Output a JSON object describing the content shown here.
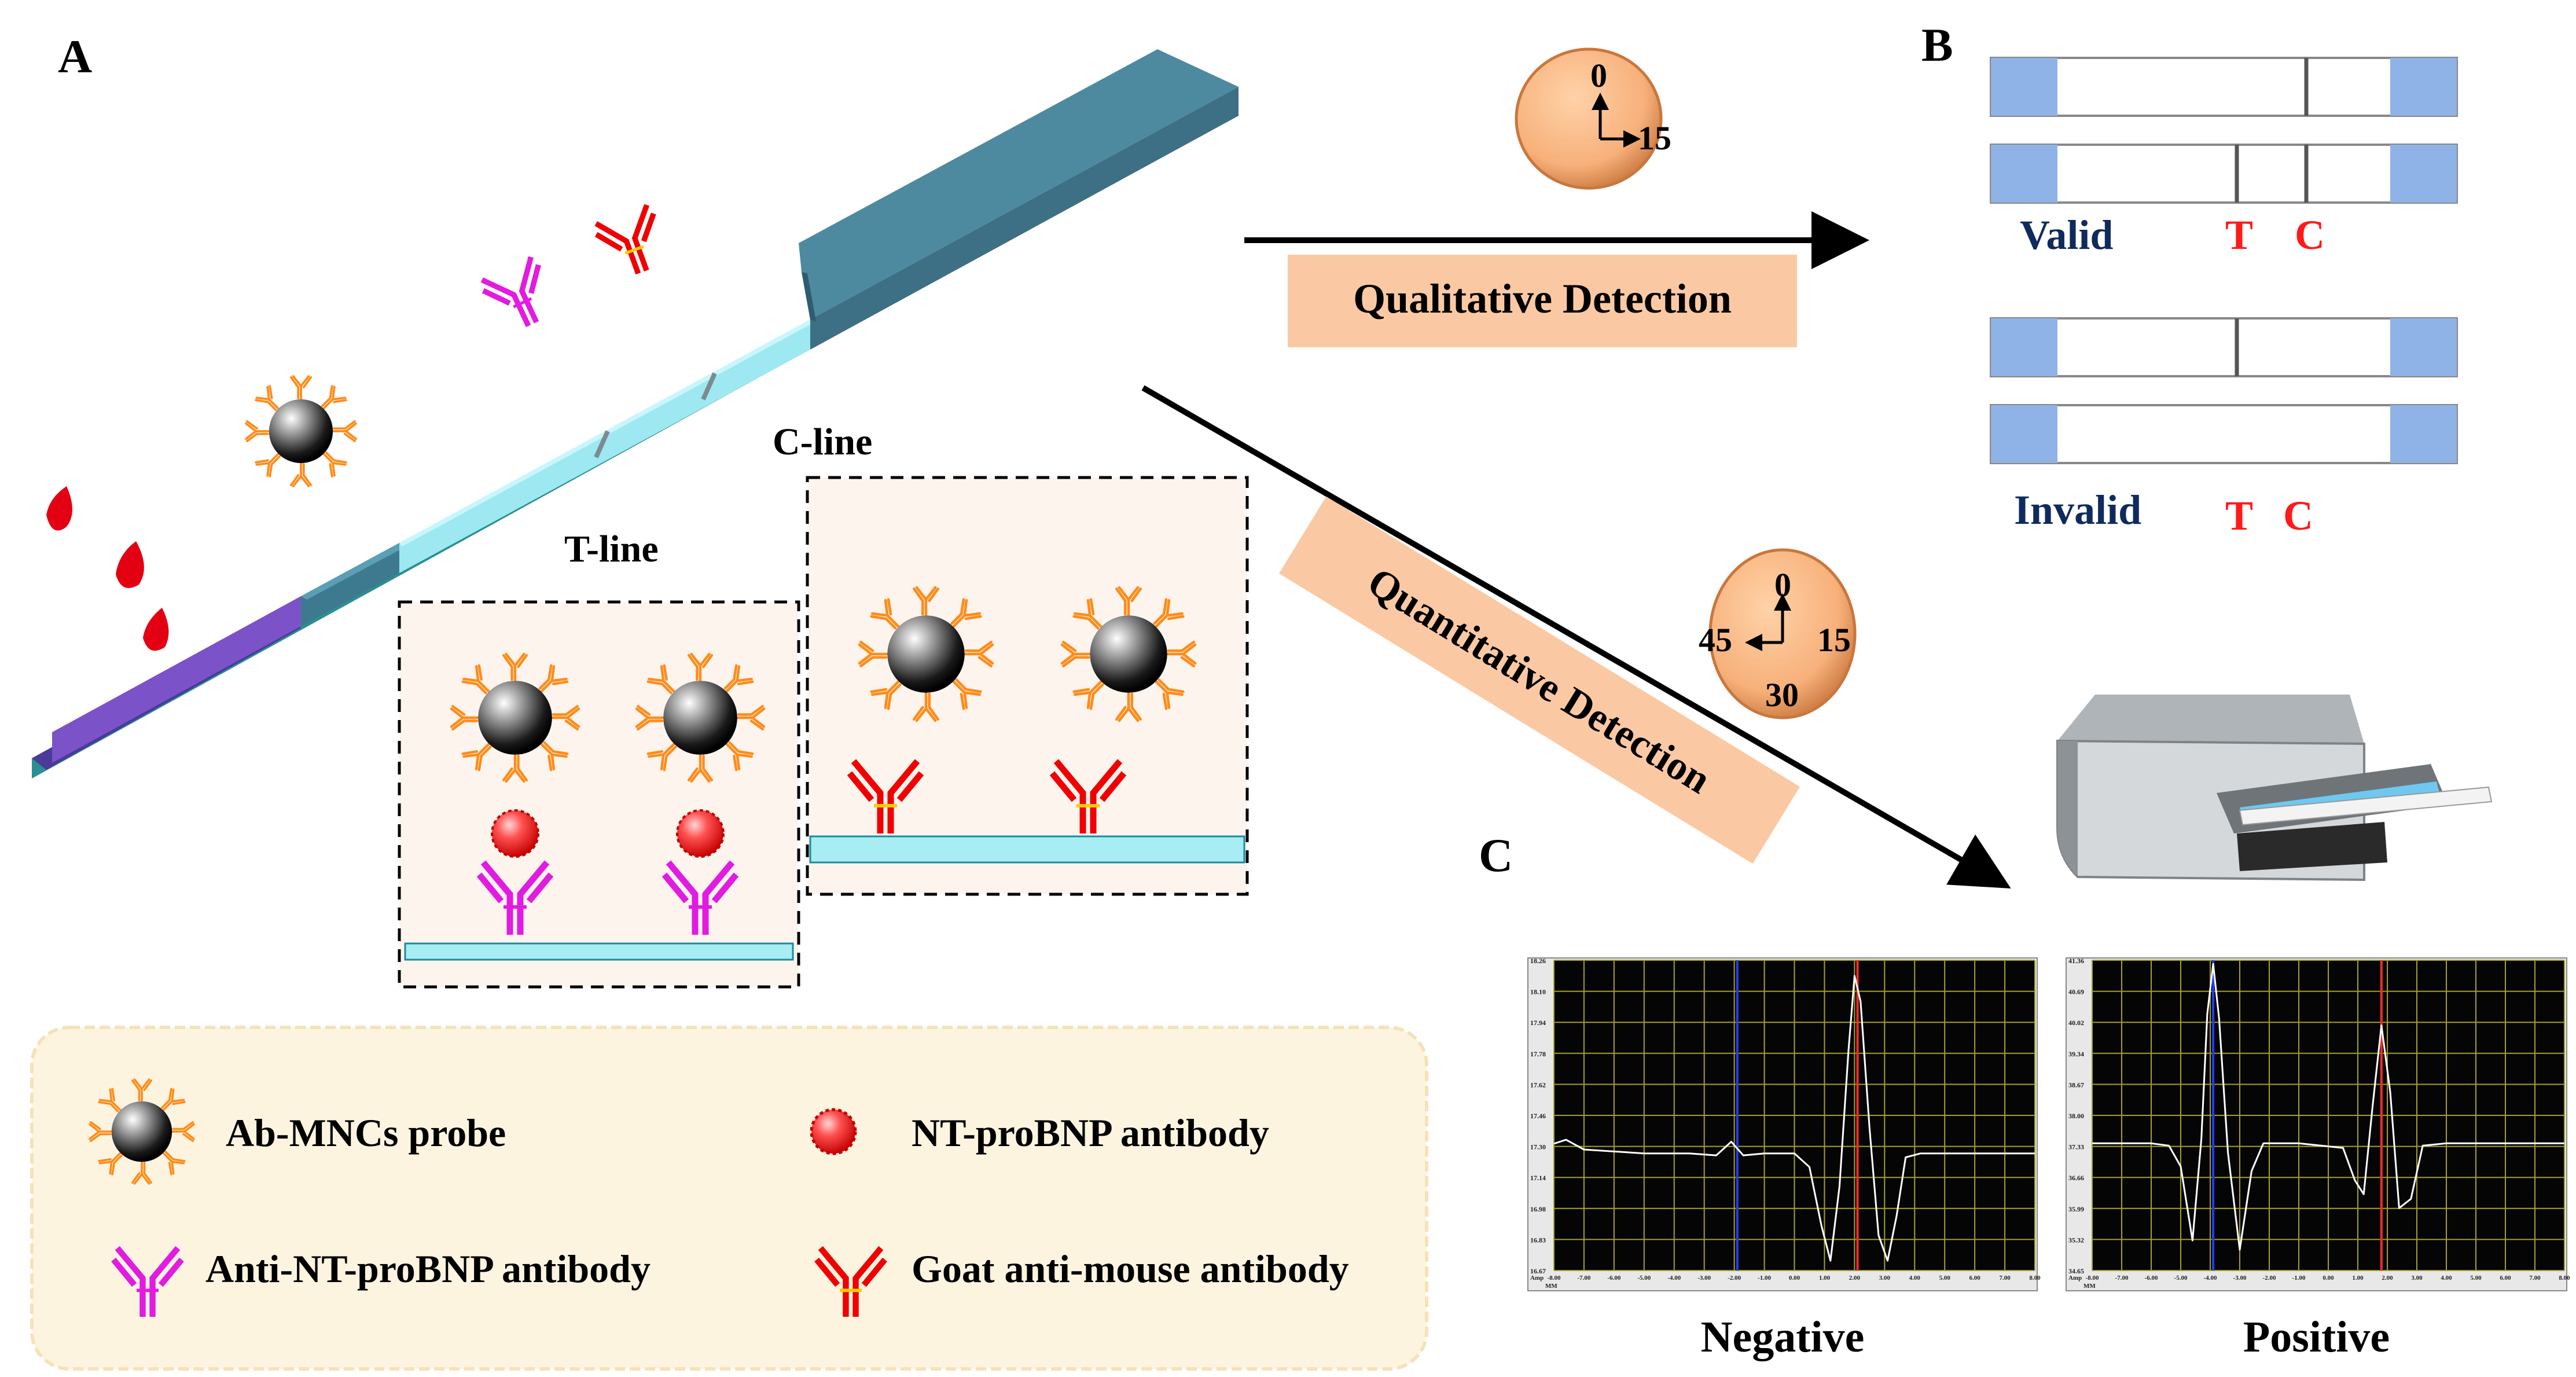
{
  "panels": {
    "a": "A",
    "b": "B",
    "c": "C"
  },
  "strip": {
    "t_line_label": "T-line",
    "c_line_label": "C-line"
  },
  "qualitative": {
    "label": "Qualitative Detection",
    "timer": {
      "t0": "0",
      "t15": "15"
    }
  },
  "quantitative": {
    "label": "Quantitative Detection",
    "timer": {
      "t0": "0",
      "t15": "15",
      "t30": "30",
      "t45": "45"
    }
  },
  "results": {
    "valid": {
      "label": "Valid",
      "t": "T",
      "c": "C"
    },
    "invalid": {
      "label": "Invalid",
      "t": "T",
      "c": "C"
    }
  },
  "legend": {
    "probe": "Ab-MNCs probe",
    "nt_antibody": "NT-proBNP antibody",
    "anti_nt": "Anti-NT-proBNP antibody",
    "goat": "Goat anti-mouse antibody"
  },
  "chart_data": [
    {
      "type": "line",
      "title": "Negative",
      "xlabel": "MM",
      "ylabel": "Amp",
      "xlim": [
        -8,
        8
      ],
      "ylim": [
        16.67,
        18.26
      ],
      "yticks": [
        "18.26",
        "18.10",
        "17.94",
        "17.78",
        "17.62",
        "17.46",
        "17.30",
        "17.14",
        "16.98",
        "16.83",
        "16.67"
      ],
      "xticks": [
        "-8.00",
        "-7.00",
        "-6.00",
        "-5.00",
        "-4.00",
        "-3.00",
        "-2.00",
        "-1.00",
        "0.00",
        "1.00",
        "2.00",
        "3.00",
        "4.00",
        "5.00",
        "6.00",
        "7.00",
        "8.00"
      ],
      "markers": [
        {
          "name": "T",
          "x": -1.9,
          "color": "#1f3dff"
        },
        {
          "name": "C",
          "x": 2.1,
          "color": "#ff2a2a"
        }
      ],
      "series": [
        {
          "name": "signal",
          "color": "#ffffff",
          "x": [
            -8,
            -7.6,
            -7,
            -5,
            -3.5,
            -2.6,
            -2.1,
            -1.7,
            -1,
            0,
            0.5,
            0.9,
            1.2,
            1.5,
            1.8,
            2.0,
            2.2,
            2.5,
            2.8,
            3.1,
            3.4,
            3.7,
            4.2,
            5,
            6,
            8
          ],
          "y": [
            17.32,
            17.34,
            17.29,
            17.27,
            17.27,
            17.26,
            17.33,
            17.26,
            17.27,
            17.27,
            17.2,
            16.9,
            16.72,
            17.1,
            17.8,
            18.18,
            18.05,
            17.4,
            16.85,
            16.72,
            16.95,
            17.25,
            17.27,
            17.27,
            17.27,
            17.27
          ]
        }
      ]
    },
    {
      "type": "line",
      "title": "Positive",
      "xlabel": "MM",
      "ylabel": "Amp",
      "xlim": [
        -8,
        8
      ],
      "ylim": [
        34.65,
        41.36
      ],
      "yticks": [
        "41.36",
        "40.69",
        "40.02",
        "39.34",
        "38.67",
        "38.00",
        "37.33",
        "36.66",
        "35.99",
        "35.32",
        "34.65"
      ],
      "xticks": [
        "-8.00",
        "-7.00",
        "-6.00",
        "-5.00",
        "-4.00",
        "-3.00",
        "-2.00",
        "-1.00",
        "0.00",
        "1.00",
        "2.00",
        "3.00",
        "4.00",
        "5.00",
        "6.00",
        "7.00",
        "8.00"
      ],
      "markers": [
        {
          "name": "T",
          "x": -3.9,
          "color": "#1f3dff"
        },
        {
          "name": "C",
          "x": 1.8,
          "color": "#ff2a2a"
        }
      ],
      "series": [
        {
          "name": "signal",
          "color": "#ffffff",
          "x": [
            -8,
            -6,
            -5.4,
            -5.0,
            -4.6,
            -4.3,
            -4.1,
            -3.9,
            -3.7,
            -3.4,
            -3.0,
            -2.6,
            -2.2,
            -1,
            0.5,
            0.9,
            1.2,
            1.5,
            1.8,
            2.1,
            2.4,
            2.8,
            3.2,
            4,
            6,
            8
          ],
          "y": [
            37.4,
            37.4,
            37.35,
            36.9,
            35.3,
            37.5,
            40.2,
            41.28,
            40.1,
            37.2,
            35.1,
            36.8,
            37.4,
            37.4,
            37.3,
            36.6,
            36.3,
            38.2,
            39.95,
            38.5,
            36.0,
            36.2,
            37.35,
            37.4,
            37.4,
            37.4
          ]
        }
      ]
    }
  ]
}
